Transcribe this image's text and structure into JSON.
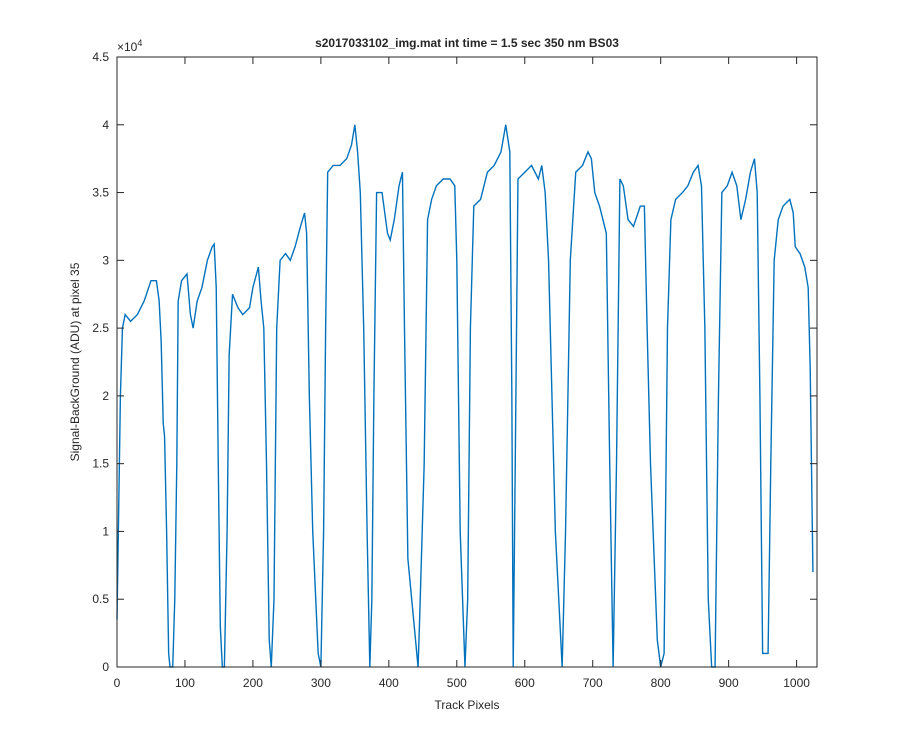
{
  "chart_data": {
    "type": "line",
    "title": "s2017033102_img.mat int time = 1.5 sec  350 nm BS03",
    "x_label": "Track Pixels",
    "y_label": "Signal-BackGround (ADU) at pixel 35",
    "y_multiplier_base": "×10",
    "y_multiplier_exponent": 4,
    "xlim": [
      0,
      1030
    ],
    "ylim": [
      0,
      4.5
    ],
    "xticks": [
      0,
      100,
      200,
      300,
      400,
      500,
      600,
      700,
      800,
      900,
      1000
    ],
    "yticks": [
      0,
      0.5,
      1,
      1.5,
      2,
      2.5,
      3,
      3.5,
      4,
      4.5
    ],
    "x": [
      0,
      2,
      5,
      8,
      12,
      20,
      30,
      40,
      50,
      58,
      62,
      65,
      68,
      70,
      73,
      76,
      78,
      82,
      85,
      88,
      90,
      95,
      103,
      108,
      112,
      118,
      125,
      133,
      140,
      143,
      146,
      149,
      152,
      155,
      158,
      162,
      165,
      170,
      178,
      185,
      195,
      200,
      208,
      212,
      216,
      220,
      224,
      227,
      231,
      235,
      240,
      248,
      255,
      262,
      270,
      276,
      279,
      283,
      288,
      296,
      300,
      304,
      307,
      310,
      318,
      328,
      338,
      345,
      350,
      354,
      358,
      363,
      368,
      372,
      375,
      378,
      382,
      390,
      398,
      402,
      408,
      415,
      420,
      423,
      428,
      443,
      445,
      452,
      457,
      463,
      470,
      480,
      490,
      497,
      500,
      505,
      512,
      516,
      520,
      525,
      535,
      545,
      555,
      565,
      572,
      578,
      581,
      583,
      586,
      590,
      600,
      610,
      620,
      625,
      630,
      635,
      645,
      655,
      660,
      667,
      675,
      685,
      693,
      698,
      703,
      710,
      720,
      725,
      730,
      735,
      740,
      745,
      752,
      760,
      770,
      776,
      780,
      785,
      795,
      800,
      805,
      810,
      815,
      822,
      832,
      840,
      848,
      855,
      860,
      865,
      870,
      875,
      880,
      885,
      890,
      898,
      905,
      912,
      918,
      925,
      932,
      938,
      942,
      946,
      950,
      958,
      962,
      967,
      973,
      980,
      990,
      995,
      998,
      1005,
      1012,
      1017,
      1020,
      1024
    ],
    "series": [
      {
        "name": "pixel 35",
        "color": "#0072bd",
        "values": [
          0.35,
          1.0,
          2.0,
          2.5,
          2.6,
          2.55,
          2.6,
          2.7,
          2.85,
          2.85,
          2.7,
          2.4,
          1.8,
          1.7,
          1.0,
          0.1,
          0,
          0,
          0.5,
          1.5,
          2.7,
          2.85,
          2.9,
          2.6,
          2.5,
          2.7,
          2.8,
          3.0,
          3.1,
          3.12,
          2.8,
          1.5,
          0.3,
          0,
          0,
          1.0,
          2.3,
          2.75,
          2.65,
          2.6,
          2.65,
          2.8,
          2.95,
          2.7,
          2.5,
          1.5,
          0.2,
          0,
          0.5,
          2.5,
          3.0,
          3.05,
          3.0,
          3.1,
          3.25,
          3.35,
          3.2,
          2.0,
          1.0,
          0.1,
          0,
          1.0,
          2.5,
          3.65,
          3.7,
          3.7,
          3.75,
          3.85,
          4.0,
          3.8,
          3.5,
          2.5,
          1.0,
          0,
          0.5,
          2.0,
          3.5,
          3.5,
          3.2,
          3.15,
          3.3,
          3.55,
          3.65,
          2.5,
          0.8,
          0,
          0.3,
          1.5,
          3.3,
          3.45,
          3.55,
          3.6,
          3.6,
          3.55,
          3.0,
          1.0,
          0,
          0.5,
          2.5,
          3.4,
          3.45,
          3.65,
          3.7,
          3.8,
          4.0,
          3.8,
          2.0,
          0,
          1.5,
          3.6,
          3.65,
          3.7,
          3.6,
          3.7,
          3.5,
          3.0,
          1.0,
          0,
          1.0,
          3.0,
          3.65,
          3.7,
          3.8,
          3.75,
          3.5,
          3.4,
          3.2,
          1.5,
          0,
          1.5,
          3.6,
          3.55,
          3.3,
          3.25,
          3.4,
          3.4,
          2.5,
          1.5,
          0.2,
          0,
          0.1,
          2.5,
          3.3,
          3.45,
          3.5,
          3.55,
          3.65,
          3.7,
          3.55,
          2.5,
          0.5,
          0,
          0,
          2.0,
          3.5,
          3.55,
          3.65,
          3.55,
          3.3,
          3.45,
          3.65,
          3.75,
          3.5,
          2.0,
          0.1,
          0.1,
          1.5,
          3.0,
          3.3,
          3.4,
          3.45,
          3.35,
          3.1,
          3.05,
          2.95,
          2.8,
          2.2,
          0.7
        ]
      }
    ]
  }
}
